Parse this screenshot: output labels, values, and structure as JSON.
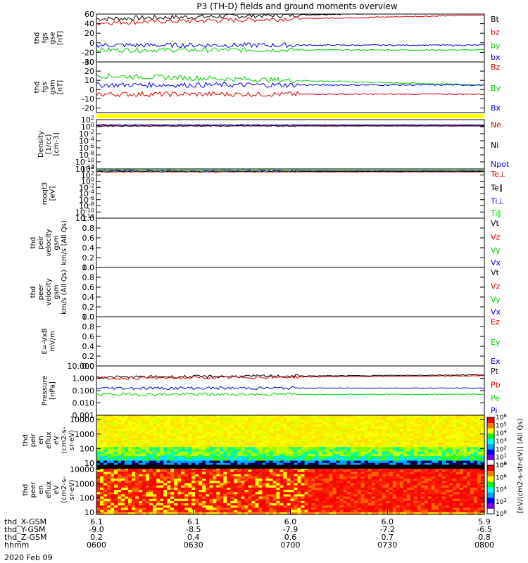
{
  "title": "P3 (TH-D) fields and ground moments overview",
  "date": "2020 Feb 09",
  "colors": {
    "black": "#000000",
    "red": "#e00000",
    "green": "#00d000",
    "blue": "#0000e0",
    "yellow": "#ffff00"
  },
  "chart_data": [
    {
      "id": "fgs_gse",
      "type": "line",
      "ylabel": [
        "thd",
        "fgs",
        "gse",
        "[nT]"
      ],
      "ylim": [
        -40,
        60
      ],
      "yticks": [
        -40,
        -20,
        0,
        20,
        40,
        60
      ],
      "series": [
        {
          "name": "Bt",
          "color": "black",
          "level": 50
        },
        {
          "name": "bz",
          "color": "red",
          "level": 42
        },
        {
          "name": "by",
          "color": "green",
          "level": -15
        },
        {
          "name": "bx",
          "color": "blue",
          "level": -5
        }
      ]
    },
    {
      "id": "fgs_gsm",
      "type": "line",
      "ylabel": [
        "thd",
        "fgs",
        "gsm",
        "[nT]"
      ],
      "ylim": [
        -25,
        30
      ],
      "yticks": [
        -20,
        -10,
        0,
        10,
        20,
        30
      ],
      "series": [
        {
          "name": "Bz",
          "color": "red",
          "level": -5
        },
        {
          "name": "By",
          "color": "green",
          "level": 15
        },
        {
          "name": "Bx",
          "color": "blue",
          "level": 5
        }
      ]
    },
    {
      "id": "flag_bar",
      "type": "bar",
      "color": "yellow"
    },
    {
      "id": "density",
      "type": "line",
      "ylabel": [
        "Density",
        "[1/cc]",
        "[cm-3]"
      ],
      "log": true,
      "ylim": [
        -12,
        2
      ],
      "yticks": [
        2,
        0,
        -2,
        -4,
        -6,
        -8,
        -10,
        -12
      ],
      "series": [
        {
          "name": "Ne",
          "color": "red",
          "level": 0.3
        },
        {
          "name": "Ni",
          "color": "black",
          "level": 0.2
        },
        {
          "name": "Npot",
          "color": "blue",
          "level": 0.5
        }
      ]
    },
    {
      "id": "temp",
      "type": "line",
      "ylabel": [
        "moqt3",
        "[eV]"
      ],
      "log": true,
      "ylim": [
        -12,
        4
      ],
      "yticks": [
        4,
        2,
        0,
        -2,
        -4,
        -6,
        -8,
        -10,
        -12
      ],
      "series": [
        {
          "name": "Te⊥",
          "color": "red",
          "level": 3
        },
        {
          "name": "Te∥",
          "color": "black",
          "level": 3.2
        },
        {
          "name": "Ti⊥",
          "color": "blue",
          "level": 3.5
        },
        {
          "name": "Ti∥",
          "color": "green",
          "level": 3.6
        }
      ]
    },
    {
      "id": "peir_vel",
      "type": "line",
      "ylabel": [
        "thd",
        "peir",
        "velocity",
        "gsm",
        "km/s (All Qs)"
      ],
      "ylim": [
        0,
        1
      ],
      "yticks": [
        0,
        0.2,
        0.4,
        0.6,
        0.8,
        1.0
      ],
      "ticklabels": [
        "0.0",
        "0.2",
        "0.4",
        "0.6",
        "0.8",
        "1.0"
      ],
      "series": [
        {
          "name": "Vt",
          "color": "black"
        },
        {
          "name": "Vz",
          "color": "red"
        },
        {
          "name": "Vy",
          "color": "green"
        },
        {
          "name": "Vx",
          "color": "blue"
        }
      ]
    },
    {
      "id": "peer_vel",
      "type": "line",
      "ylabel": [
        "thd",
        "peer",
        "velocity",
        "gsm",
        "km/s (All Qs)"
      ],
      "ylim": [
        0,
        1
      ],
      "yticks": [
        0,
        0.2,
        0.4,
        0.6,
        0.8,
        1.0
      ],
      "ticklabels": [
        "0.0",
        "0.2",
        "0.4",
        "0.6",
        "0.8",
        "1.0"
      ],
      "series": [
        {
          "name": "Vt",
          "color": "black"
        },
        {
          "name": "Vz",
          "color": "red"
        },
        {
          "name": "Vy",
          "color": "green"
        },
        {
          "name": "Vx",
          "color": "blue"
        }
      ]
    },
    {
      "id": "efield",
      "type": "line",
      "ylabel": [
        "E=-VxB",
        "mV/m"
      ],
      "ylim": [
        0,
        1
      ],
      "yticks": [
        0,
        0.2,
        0.4,
        0.6,
        0.8,
        1.0
      ],
      "ticklabels": [
        "0.0",
        "0.2",
        "0.4",
        "0.6",
        "0.8",
        "1.0"
      ],
      "series": [
        {
          "name": "Ez",
          "color": "red"
        },
        {
          "name": "Ey",
          "color": "green"
        },
        {
          "name": "Ex",
          "color": "blue"
        }
      ]
    },
    {
      "id": "pressure",
      "type": "line",
      "ylabel": [
        "Pressure",
        "[nPa]"
      ],
      "log": true,
      "ylim": [
        -3,
        1
      ],
      "yticks": [
        1,
        0,
        -1,
        -2,
        -3
      ],
      "ticklabels": [
        "10.000",
        "1.000",
        "0.100",
        "0.010",
        "0.001"
      ],
      "series": [
        {
          "name": "Pt",
          "color": "black",
          "level": 0.08
        },
        {
          "name": "Pb",
          "color": "red",
          "level": 0.0
        },
        {
          "name": "Pe",
          "color": "green",
          "level": -1.3
        },
        {
          "name": "Pi",
          "color": "blue",
          "level": -0.8
        }
      ]
    },
    {
      "id": "peir_en",
      "type": "heatmap",
      "ylabel": [
        "thd",
        "peir",
        "en",
        "eflux",
        "eV",
        "(cm2-s-",
        "sr-eV)"
      ],
      "log": true,
      "ylim": [
        0.85,
        4.3
      ],
      "yticks": [
        1,
        2,
        3,
        4
      ],
      "ticklabels": [
        "10",
        "100",
        "1000",
        "10000"
      ]
    },
    {
      "id": "peer_en",
      "type": "heatmap",
      "ylabel": [
        "thd",
        "peer",
        "en",
        "eflux",
        "eV",
        "(cm2-s-",
        "sr-eV)"
      ],
      "log": true,
      "ylim": [
        0.85,
        4.3
      ],
      "yticks": [
        1,
        2,
        3,
        4
      ],
      "ticklabels": [
        "10",
        "100",
        "1000",
        "10000"
      ]
    }
  ],
  "colorbar": {
    "label": "[eV/(cm2-s-str-eV)] (All Qs)",
    "ticks": [
      {
        "exp": "0",
        "v": 0
      },
      {
        "exp": "1",
        "v": 1
      },
      {
        "exp": "2",
        "v": 2
      },
      {
        "exp": "3",
        "v": 3
      },
      {
        "exp": "4",
        "v": 4
      },
      {
        "exp": "5",
        "v": 5
      },
      {
        "exp": "6",
        "v": 6
      }
    ],
    "ticks2": [
      {
        "exp": "0",
        "v": 0
      },
      {
        "exp": "2",
        "v": 2
      },
      {
        "exp": "4",
        "v": 4
      },
      {
        "exp": "6",
        "v": 6
      },
      {
        "exp": "8",
        "v": 8
      }
    ],
    "top_label": "[eV/(cm2-s-str-eV)] (All Qs)"
  },
  "time_axis": {
    "rows": [
      {
        "label": "thd_X-GSM",
        "values": [
          "6.1",
          "6.1",
          "6.0",
          "6.0",
          "5.9"
        ]
      },
      {
        "label": "thd_Y-GSM",
        "values": [
          "-9.0",
          "-8.5",
          "-7.9",
          "-7.2",
          "-6.5"
        ]
      },
      {
        "label": "thd_Z-GSM",
        "values": [
          "0.2",
          "0.4",
          "0.6",
          "0.7",
          "0.8"
        ]
      },
      {
        "label": "hhmm",
        "values": [
          "0600",
          "0630",
          "0700",
          "0730",
          "0800"
        ]
      }
    ]
  }
}
